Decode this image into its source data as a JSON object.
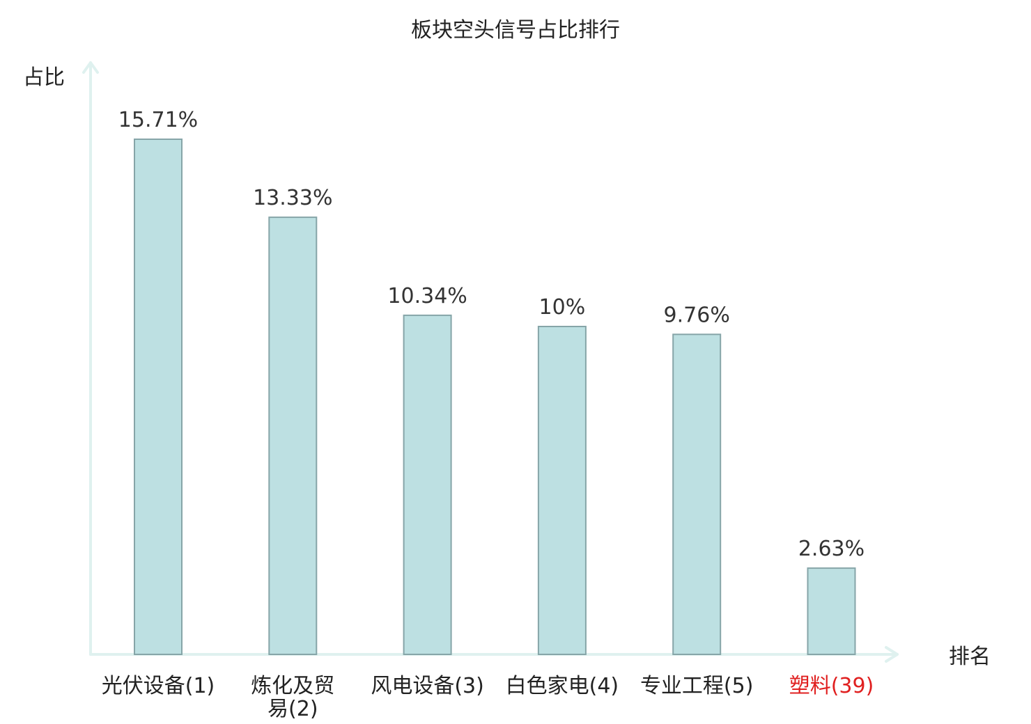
{
  "chart_data": {
    "type": "bar",
    "title": "板块空头信号占比排行",
    "ylabel": "占比",
    "xlabel": "排名",
    "ylim": [
      0,
      17
    ],
    "grid": false,
    "categories": [
      {
        "lines": [
          "光伏设备(1)"
        ],
        "highlight": false
      },
      {
        "lines": [
          "炼化及贸",
          "易(2)"
        ],
        "highlight": false
      },
      {
        "lines": [
          "风电设备(3)"
        ],
        "highlight": false
      },
      {
        "lines": [
          "白色家电(4)"
        ],
        "highlight": false
      },
      {
        "lines": [
          "专业工程(5)"
        ],
        "highlight": false
      },
      {
        "lines": [
          "塑料(39)"
        ],
        "highlight": true
      }
    ],
    "values": [
      15.71,
      13.33,
      10.34,
      10,
      9.76,
      2.63
    ],
    "value_labels": [
      "15.71%",
      "13.33%",
      "10.34%",
      "10%",
      "9.76%",
      "2.63%"
    ]
  },
  "colors": {
    "bar_fill": "#bde0e2",
    "bar_stroke": "#86a5a8",
    "axis": "#dff1ef",
    "text": "#222222",
    "highlight_text": "#e02020"
  }
}
